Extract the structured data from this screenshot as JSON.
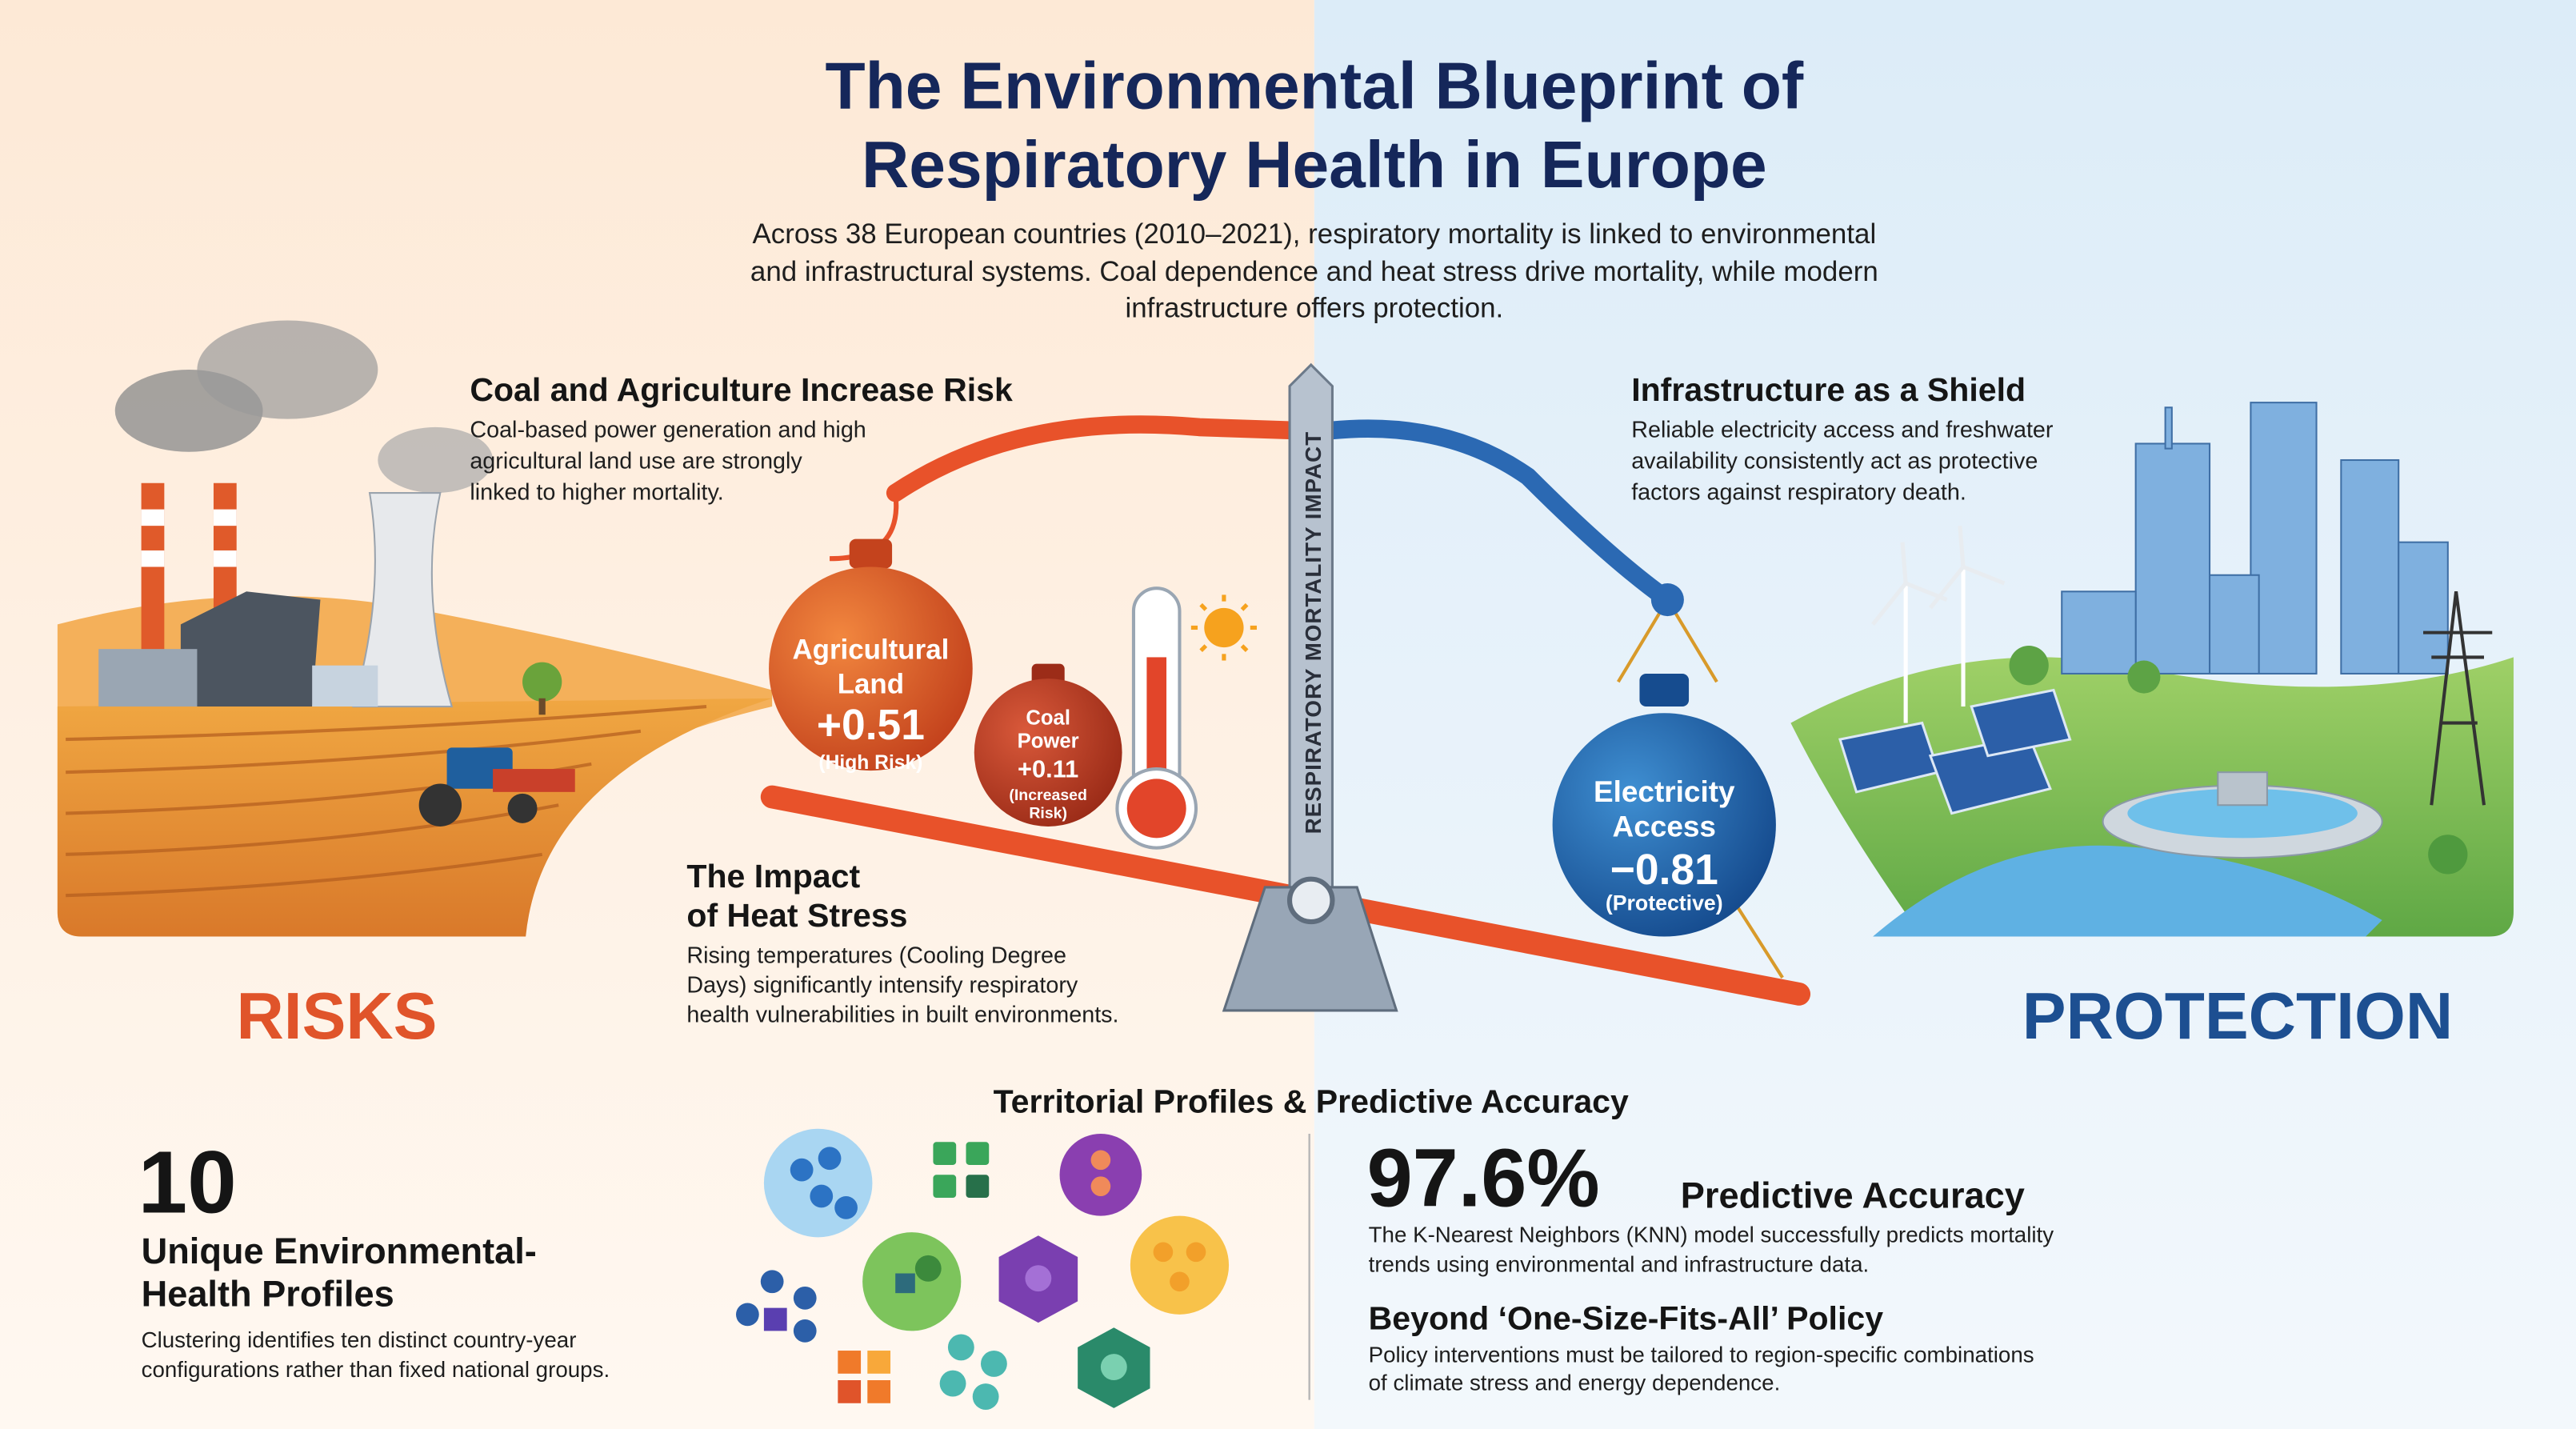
{
  "header": {
    "title_lines": [
      "The Environmental Blueprint of",
      "Respiratory Health in Europe"
    ],
    "intro_lines": [
      "Across 38 European countries (2010–2021), respiratory mortality is linked to environmental",
      "and infrastructural systems. Coal dependence and heat stress drive mortality, while modern",
      "infrastructure offers protection."
    ]
  },
  "risk_panel": {
    "heading": "Coal and Agriculture Increase Risk",
    "body_lines": [
      "Coal-based power generation and high",
      "agricultural land use are strongly",
      "linked to higher mortality."
    ],
    "label": "RISKS"
  },
  "protection_panel": {
    "heading": "Infrastructure as a Shield",
    "body_lines": [
      "Reliable electricity access and freshwater",
      "availability consistently act as protective",
      "factors against respiratory death."
    ],
    "label": "PROTECTION"
  },
  "scale": {
    "axis_label": "RESPIRATORY MORTALITY IMPACT",
    "weights": [
      {
        "name_lines": [
          "Agricultural",
          "Land"
        ],
        "value": "+0.51",
        "note_lines": [
          "(High Risk)"
        ]
      },
      {
        "name_lines": [
          "Coal",
          "Power"
        ],
        "value": "+0.11",
        "note_lines": [
          "(Increased",
          "Risk)"
        ]
      },
      {
        "name_lines": [
          "Electricity",
          "Access"
        ],
        "value": "−0.81",
        "note_lines": [
          "(Protective)"
        ]
      }
    ]
  },
  "heat_stress": {
    "heading_lines": [
      "The Impact",
      "of Heat Stress"
    ],
    "body_lines": [
      "Rising temperatures (Cooling Degree",
      "Days) significantly intensify respiratory",
      "health vulnerabilities in built environments."
    ]
  },
  "bottom": {
    "heading": "Territorial Profiles & Predictive Accuracy",
    "profiles": {
      "number": "10",
      "title_lines": [
        "Unique Environmental-",
        "Health Profiles"
      ],
      "body_lines": [
        "Clustering identifies ten distinct country-year",
        "configurations rather than fixed national groups."
      ]
    },
    "accuracy": {
      "number": "97.6%",
      "label": "Predictive Accuracy",
      "body_lines": [
        "The K-Nearest Neighbors (KNN) model successfully predicts mortality",
        "trends using environmental and infrastructure data."
      ]
    },
    "policy": {
      "heading": "Beyond ‘One-Size-Fits-All’ Policy",
      "body_lines": [
        "Policy interventions must be tailored to region-specific combinations",
        "of climate stress and energy dependence."
      ]
    }
  }
}
